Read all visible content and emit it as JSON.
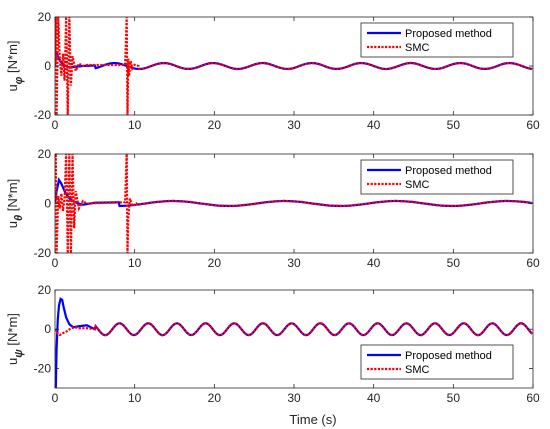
{
  "colors": {
    "proposed": "#0000ff",
    "smc": "#ff0000",
    "axis": "#262626"
  },
  "chart_data": [
    {
      "type": "line",
      "ylabel": {
        "prefix": "u",
        "symbol": "φ",
        "unit": " [N*m]"
      },
      "xlim": [
        0,
        60
      ],
      "ylim": [
        -20,
        20
      ],
      "xticks": [
        "0",
        "10",
        "20",
        "30",
        "40",
        "50",
        "60"
      ],
      "yticks": [
        "-20",
        "0",
        "20"
      ],
      "ytick_values": [
        -20,
        0,
        20
      ],
      "legend": {
        "position": "top-right",
        "entries": [
          "Proposed method",
          "SMC"
        ]
      },
      "steady_state": {
        "amplitude": 1.2,
        "period_s": 6.2,
        "phase": 0.3
      },
      "series": [
        {
          "name": "Proposed method",
          "x": [
            0,
            0.15,
            0.3,
            0.5,
            0.8,
            1.2,
            1.8,
            2.5,
            3.5,
            5
          ],
          "y": [
            0,
            5.5,
            4.5,
            3,
            1.5,
            0.2,
            -0.6,
            -0.3,
            0,
            0.2
          ]
        },
        {
          "name": "SMC",
          "x": [
            0,
            0.1,
            0.2,
            0.4,
            0.6,
            0.8,
            1.0,
            1.2,
            1.4,
            1.6,
            1.8,
            2.0,
            2.2,
            2.6,
            3.0,
            3.5,
            4.0,
            8.8,
            9.0,
            9.1,
            9.2,
            9.3,
            9.5,
            9.7,
            10.0,
            10.5
          ],
          "y": [
            0,
            20,
            -20,
            20,
            3,
            -4,
            5,
            -6,
            20,
            -20,
            20,
            -8,
            4,
            -2,
            1,
            0,
            0.4,
            0.4,
            20,
            -20,
            3,
            -4,
            2,
            -1,
            0.5,
            0
          ]
        }
      ]
    },
    {
      "type": "line",
      "ylabel": {
        "prefix": "u",
        "symbol": "θ",
        "unit": " [N*m]"
      },
      "xlim": [
        0,
        60
      ],
      "ylim": [
        -20,
        20
      ],
      "xticks": [
        "0",
        "10",
        "20",
        "30",
        "40",
        "50",
        "60"
      ],
      "yticks": [
        "-20",
        "0",
        "20"
      ],
      "ytick_values": [
        -20,
        0,
        20
      ],
      "legend": {
        "position": "top-right",
        "entries": [
          "Proposed method",
          "SMC"
        ]
      },
      "steady_state": {
        "amplitude": 1.0,
        "period_s": 14.0,
        "phase": 1.2
      },
      "series": [
        {
          "name": "Proposed method",
          "x": [
            0,
            0.2,
            0.5,
            0.8,
            1.2,
            1.8,
            2.5,
            3.5,
            5,
            8
          ],
          "y": [
            0,
            5,
            9.5,
            8,
            5,
            2,
            0.5,
            -0.5,
            0.3,
            0.5
          ]
        },
        {
          "name": "SMC",
          "x": [
            0,
            0.1,
            0.2,
            0.4,
            0.6,
            0.8,
            1.0,
            1.2,
            1.4,
            1.6,
            1.8,
            2.0,
            2.2,
            2.4,
            2.6,
            3.0,
            3.5,
            4.0,
            8.8,
            9.0,
            9.1,
            9.2,
            9.4,
            9.7,
            10.2
          ],
          "y": [
            0,
            20,
            -20,
            3,
            -2,
            4,
            -3,
            2,
            20,
            -20,
            20,
            -20,
            20,
            -10,
            5,
            -2,
            1,
            0,
            0.5,
            20,
            -20,
            -6,
            2,
            -1,
            0
          ]
        }
      ]
    },
    {
      "type": "line",
      "ylabel": {
        "prefix": "u",
        "symbol": "ψ",
        "unit": " [N*m]"
      },
      "xlim": [
        0,
        60
      ],
      "ylim": [
        -30,
        20
      ],
      "xticks": [
        "0",
        "10",
        "20",
        "30",
        "40",
        "50",
        "60"
      ],
      "yticks": [
        "-20",
        "0",
        "20"
      ],
      "ytick_values": [
        -20,
        0,
        20
      ],
      "legend": {
        "position": "bottom-right",
        "entries": [
          "Proposed method",
          "SMC"
        ]
      },
      "steady_state": {
        "amplitude": 3.0,
        "period_s": 3.6,
        "phase": 0.0
      },
      "series": [
        {
          "name": "Proposed method",
          "x": [
            0,
            0.1,
            0.2,
            0.35,
            0.5,
            0.7,
            0.9,
            1.1,
            1.4,
            1.8,
            2.3,
            3.0,
            4.0,
            5.0
          ],
          "y": [
            -30,
            -30,
            -10,
            5,
            12,
            15.5,
            15,
            11,
            6,
            2.5,
            1,
            1.5,
            2,
            0
          ]
        },
        {
          "name": "SMC",
          "x": [
            0,
            0.3,
            0.6,
            1.0,
            1.5,
            2.0,
            2.5,
            3.0,
            4.0,
            5.0
          ],
          "y": [
            0,
            -2,
            -3,
            -2,
            -1,
            0.5,
            1,
            0.5,
            0.5,
            0
          ]
        }
      ]
    }
  ],
  "xlabel": "Time (s)"
}
